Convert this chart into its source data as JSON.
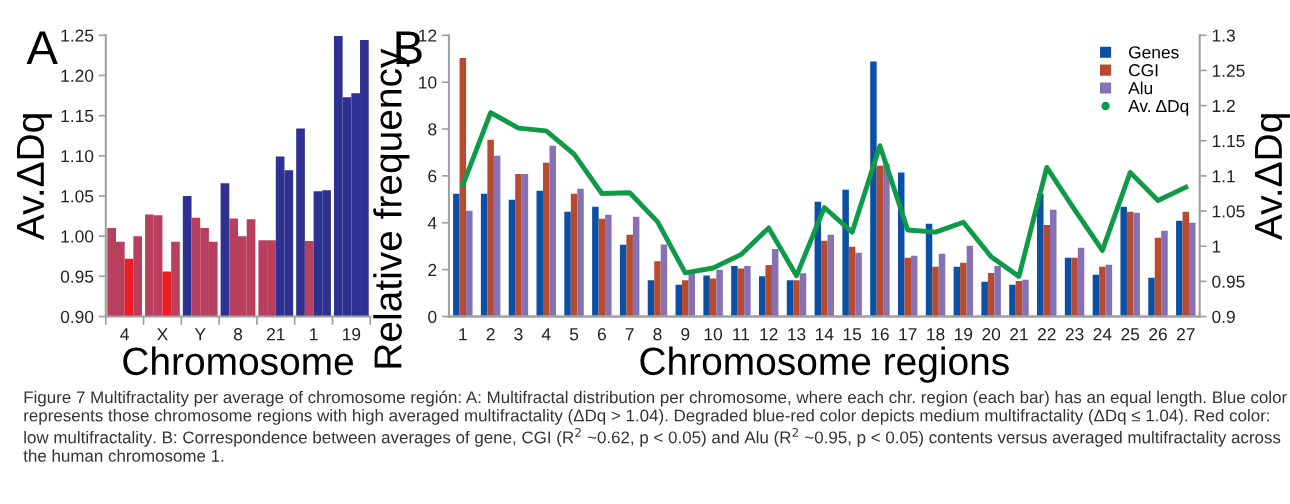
{
  "chart_data": [
    {
      "type": "bar",
      "title": "A",
      "xlabel": "Chromosome",
      "ylabel": "Av.ΔDq",
      "categories": [
        "4",
        "X",
        "Y",
        "8",
        "21",
        "1",
        "19"
      ],
      "series": [
        {
          "values": [
            1.01,
            1.027,
            1.05,
            1.066,
            0.995,
            1.134,
            1.249
          ],
          "colors": [
            "#b8405e",
            "#b8405e",
            "#2e3192",
            "#2e3192",
            "#b8405e",
            "#2e3192",
            "#2e3192"
          ]
        },
        {
          "values": [
            0.993,
            1.026,
            1.023,
            1.022,
            0.995,
            0.994,
            1.173
          ],
          "colors": [
            "#b8405e",
            "#b8405e",
            "#b8405e",
            "#b8405e",
            "#b8405e",
            "#b8405e",
            "#2e3192"
          ]
        },
        {
          "values": [
            0.972,
            0.956,
            1.01,
            1.0,
            1.099,
            1.056,
            1.178
          ],
          "colors": [
            "#ed1c24",
            "#ed1c24",
            "#b8405e",
            "#b8405e",
            "#2e3192",
            "#2e3192",
            "#2e3192"
          ]
        },
        {
          "values": [
            1.0,
            0.993,
            0.993,
            1.021,
            1.082,
            1.057,
            1.244
          ],
          "colors": [
            "#b8405e",
            "#b8405e",
            "#b8405e",
            "#b8405e",
            "#2e3192",
            "#2e3192",
            "#2e3192"
          ]
        }
      ],
      "ylim": [
        0.9,
        1.25
      ],
      "yticks": [
        {
          "value": 0.9,
          "label": "0.90"
        },
        {
          "value": 0.95,
          "label": "0.95"
        },
        {
          "value": 1.0,
          "label": "1.00"
        },
        {
          "value": 1.05,
          "label": "1.05"
        },
        {
          "value": 1.1,
          "label": "1.10"
        },
        {
          "value": 1.15,
          "label": "1.15"
        },
        {
          "value": 1.2,
          "label": "1.20"
        },
        {
          "value": 1.25,
          "label": "1.25"
        }
      ],
      "grid": false,
      "legend": false
    },
    {
      "type": "bar",
      "title": "B",
      "xlabel": "Chromosome regions",
      "ylabel": "Relative frequency",
      "y2label": "Av.ΔDq",
      "categories": [
        "1",
        "2",
        "3",
        "4",
        "5",
        "6",
        "7",
        "8",
        "9",
        "10",
        "11",
        "12",
        "13",
        "14",
        "15",
        "16",
        "17",
        "18",
        "19",
        "20",
        "21",
        "22",
        "23",
        "24",
        "25",
        "26",
        "27"
      ],
      "series": [
        {
          "name": "Genes",
          "color": "#0b50a5",
          "values": [
            5.24,
            5.24,
            4.98,
            5.37,
            4.47,
            4.68,
            3.06,
            1.55,
            1.35,
            1.75,
            2.15,
            1.72,
            1.55,
            4.9,
            5.41,
            10.88,
            6.14,
            3.96,
            2.12,
            1.48,
            1.35,
            5.24,
            2.51,
            1.78,
            4.68,
            1.65,
            4.09
          ]
        },
        {
          "name": "CGI",
          "color": "#b84a30",
          "values": [
            11.03,
            7.54,
            6.08,
            6.56,
            5.24,
            4.17,
            3.49,
            2.36,
            1.55,
            1.62,
            2.05,
            2.2,
            1.55,
            3.23,
            2.98,
            6.43,
            2.51,
            2.12,
            2.29,
            1.86,
            1.52,
            3.91,
            2.51,
            2.12,
            4.47,
            3.36,
            4.47
          ]
        },
        {
          "name": "Alu",
          "color": "#8472b4",
          "values": [
            4.51,
            6.86,
            6.08,
            7.29,
            5.45,
            4.34,
            4.26,
            3.07,
            1.9,
            2.0,
            2.15,
            2.88,
            1.85,
            3.49,
            2.72,
            6.52,
            2.59,
            2.68,
            3.02,
            2.16,
            1.57,
            4.56,
            2.93,
            2.21,
            4.43,
            3.66,
            4.0
          ]
        },
        {
          "name": "Av. ΔDq",
          "type": "line",
          "axis": "y2",
          "color": "#0f9a48",
          "values": [
            1.087,
            1.19,
            1.168,
            1.164,
            1.131,
            1.075,
            1.076,
            1.035,
            0.962,
            0.969,
            0.988,
            1.026,
            0.958,
            1.055,
            1.02,
            1.143,
            1.023,
            1.02,
            1.034,
            0.985,
            0.957,
            1.112,
            1.052,
            0.994,
            1.105,
            1.065,
            1.084
          ]
        }
      ],
      "ylim": [
        0,
        12
      ],
      "yticks": [
        0,
        2,
        4,
        6,
        8,
        10,
        12
      ],
      "y2lim": [
        0.9,
        1.3
      ],
      "y2ticks": [
        0.9,
        0.95,
        1,
        1.05,
        1.1,
        1.15,
        1.2,
        1.25,
        1.3
      ],
      "grid": false,
      "legend": "top right",
      "annotations": [
        "Figure 7 Multifractality per average of chromosome región: A: Multifractal distribution per chromosome, where each chr. region (each bar) has an equal length. Blue color represents those chromosome regions with high averaged multifractality (ΔDq > 1.04). Degraded blue-red color depicts medium multifractality (ΔDq ≤ 1.04). Red color: low multifractality. B: Correspondence between averages of gene, CGI (R$^{2}$ ~0.62, p < 0.05) and Alu (R$^{2}$ ~0.95, p < 0.05) contents versus averaged multifractality across the human chromosome 1."
      ]
    }
  ]
}
